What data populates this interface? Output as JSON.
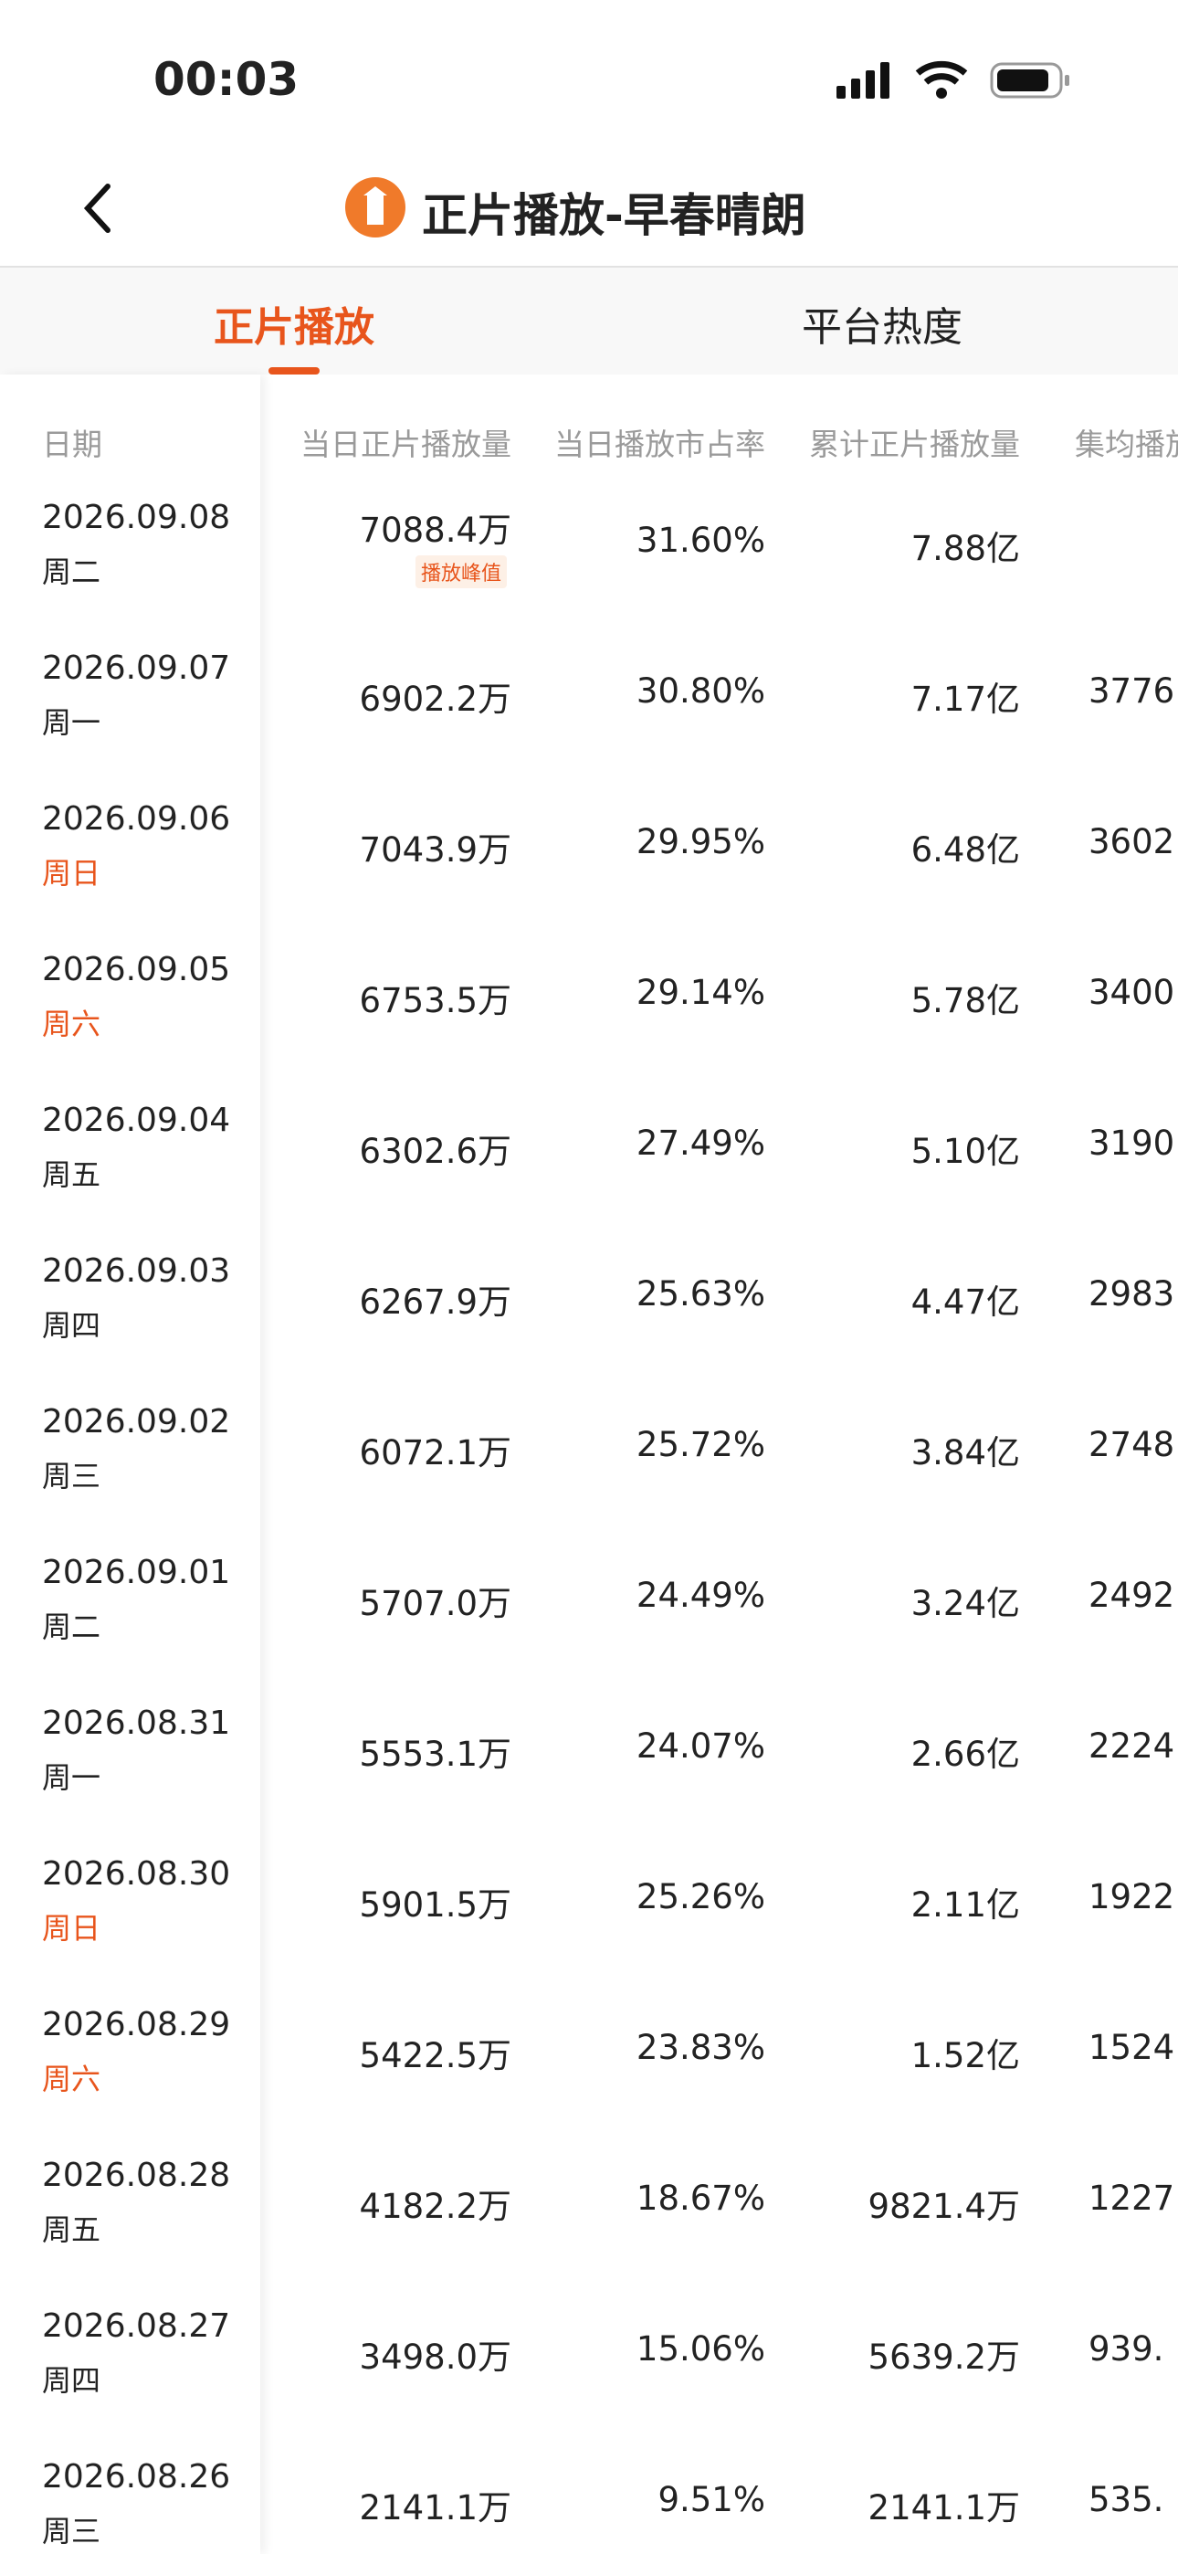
{
  "status_bar": {
    "time": "00:03"
  },
  "header": {
    "title": "正片播放-早春晴朗"
  },
  "tabs": [
    {
      "label": "正片播放",
      "active": true
    },
    {
      "label": "平台热度",
      "active": false
    }
  ],
  "table": {
    "columns": [
      "日期",
      "当日正片播放量",
      "当日播放市占率",
      "累计正片播放量",
      "集均播放"
    ],
    "rows": [
      {
        "date": "2026.09.08",
        "weekday": "周二",
        "weekday_color": "#222222",
        "daily": "7088.4万",
        "badge": "播放峰值",
        "share": "31.60%",
        "total": "7.88亿",
        "avg": null
      },
      {
        "date": "2026.09.07",
        "weekday": "周一",
        "weekday_color": "#222222",
        "daily": "6902.2万",
        "share": "30.80%",
        "total": "7.17亿",
        "avg": "3776."
      },
      {
        "date": "2026.09.06",
        "weekday": "周日",
        "weekday_color": "#e8551c",
        "daily": "7043.9万",
        "share": "29.95%",
        "total": "6.48亿",
        "avg": "3602."
      },
      {
        "date": "2026.09.05",
        "weekday": "周六",
        "weekday_color": "#e8551c",
        "daily": "6753.5万",
        "share": "29.14%",
        "total": "5.78亿",
        "avg": "3400."
      },
      {
        "date": "2026.09.04",
        "weekday": "周五",
        "weekday_color": "#222222",
        "daily": "6302.6万",
        "share": "27.49%",
        "total": "5.10亿",
        "avg": "3190."
      },
      {
        "date": "2026.09.03",
        "weekday": "周四",
        "weekday_color": "#222222",
        "daily": "6267.9万",
        "share": "25.63%",
        "total": "4.47亿",
        "avg": "2983."
      },
      {
        "date": "2026.09.02",
        "weekday": "周三",
        "weekday_color": "#222222",
        "daily": "6072.1万",
        "share": "25.72%",
        "total": "3.84亿",
        "avg": "2748."
      },
      {
        "date": "2026.09.01",
        "weekday": "周二",
        "weekday_color": "#222222",
        "daily": "5707.0万",
        "share": "24.49%",
        "total": "3.24亿",
        "avg": "2492."
      },
      {
        "date": "2026.08.31",
        "weekday": "周一",
        "weekday_color": "#222222",
        "daily": "5553.1万",
        "share": "24.07%",
        "total": "2.66亿",
        "avg": "2224."
      },
      {
        "date": "2026.08.30",
        "weekday": "周日",
        "weekday_color": "#e8551c",
        "daily": "5901.5万",
        "share": "25.26%",
        "total": "2.11亿",
        "avg": "1922."
      },
      {
        "date": "2026.08.29",
        "weekday": "周六",
        "weekday_color": "#e8551c",
        "daily": "5422.5万",
        "share": "23.83%",
        "total": "1.52亿",
        "avg": "1524."
      },
      {
        "date": "2026.08.28",
        "weekday": "周五",
        "weekday_color": "#222222",
        "daily": "4182.2万",
        "share": "18.67%",
        "total": "9821.4万",
        "avg": "1227."
      },
      {
        "date": "2026.08.27",
        "weekday": "周四",
        "weekday_color": "#222222",
        "daily": "3498.0万",
        "share": "15.06%",
        "total": "5639.2万",
        "avg": "939."
      },
      {
        "date": "2026.08.26",
        "weekday": "周三",
        "weekday_color": "#222222",
        "daily": "2141.1万",
        "share": "9.51%",
        "total": "2141.1万",
        "avg": "535."
      }
    ]
  }
}
